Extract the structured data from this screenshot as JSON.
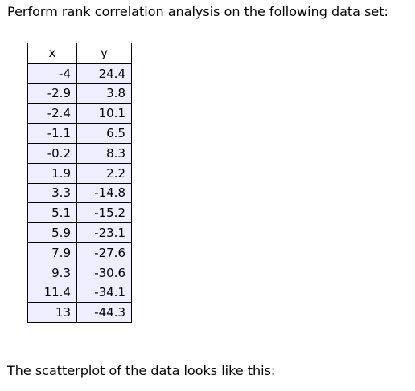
{
  "intro_text": "Perform rank correlation analysis on the following data set:",
  "table": {
    "headers": [
      "x",
      "y"
    ],
    "rows": [
      [
        "-4",
        "24.4"
      ],
      [
        "-2.9",
        "3.8"
      ],
      [
        "-2.4",
        "10.1"
      ],
      [
        "-1.1",
        "6.5"
      ],
      [
        "-0.2",
        "8.3"
      ],
      [
        "1.9",
        "2.2"
      ],
      [
        "3.3",
        "-14.8"
      ],
      [
        "5.1",
        "-15.2"
      ],
      [
        "5.9",
        "-23.1"
      ],
      [
        "7.9",
        "-27.6"
      ],
      [
        "9.3",
        "-30.6"
      ],
      [
        "11.4",
        "-34.1"
      ],
      [
        "13",
        "-44.3"
      ]
    ]
  },
  "outro_text": "The scatterplot of the data looks like this:",
  "colors": {
    "cell_background": "#eeeeff",
    "header_background": "#ffffff",
    "border": "#000000"
  }
}
